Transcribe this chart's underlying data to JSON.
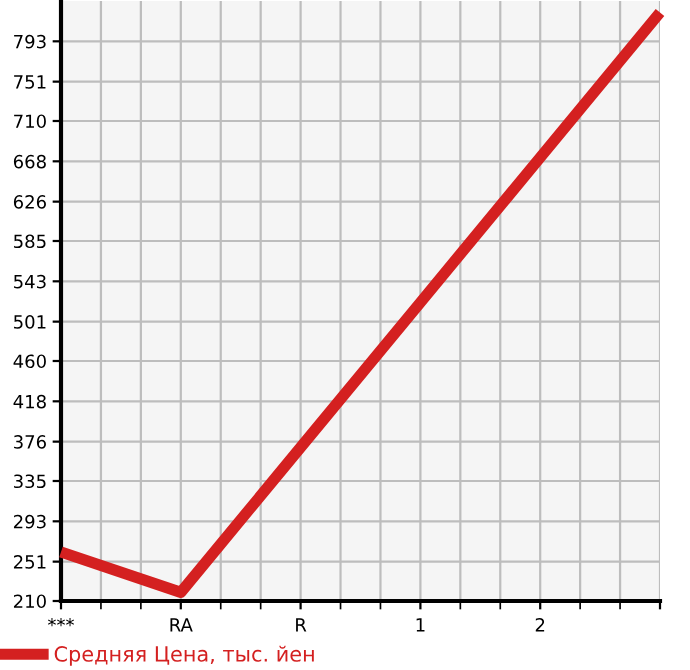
{
  "chart_data": {
    "type": "line",
    "categories": [
      "***",
      "RA",
      "R",
      "1",
      "2",
      null
    ],
    "series": [
      {
        "name": "Средняя Цена, тыс. йен",
        "color": "#d42020",
        "values": [
          261,
          219,
          370,
          521,
          672,
          823
        ]
      }
    ],
    "ylim": [
      210,
      835
    ],
    "yticks": [
      210,
      251,
      293,
      335,
      376,
      418,
      460,
      501,
      543,
      585,
      626,
      668,
      710,
      751,
      793
    ],
    "grid": true,
    "legend": "bottom left",
    "marker": "none",
    "line_style": "solid"
  }
}
